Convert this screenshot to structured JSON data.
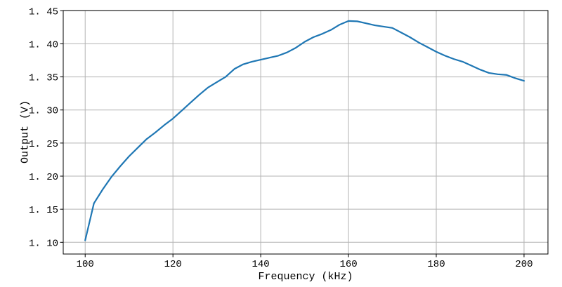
{
  "figure": {
    "background": "#ffffff"
  },
  "chart_data": {
    "type": "line",
    "title": "",
    "xlabel": "Frequency (kHz)",
    "ylabel": "Output (V)",
    "x": [
      100,
      102,
      104,
      106,
      108,
      110,
      112,
      114,
      116,
      118,
      120,
      122,
      124,
      126,
      128,
      130,
      132,
      134,
      136,
      138,
      140,
      142,
      144,
      146,
      148,
      150,
      152,
      154,
      156,
      158,
      160,
      162,
      164,
      166,
      168,
      170,
      172,
      174,
      176,
      178,
      180,
      182,
      184,
      186,
      188,
      190,
      192,
      194,
      196,
      198,
      200
    ],
    "y": [
      1.103,
      1.159,
      1.18,
      1.199,
      1.215,
      1.23,
      1.243,
      1.256,
      1.266,
      1.277,
      1.287,
      1.299,
      1.311,
      1.323,
      1.334,
      1.342,
      1.35,
      1.362,
      1.369,
      1.373,
      1.376,
      1.379,
      1.382,
      1.387,
      1.394,
      1.403,
      1.41,
      1.415,
      1.421,
      1.429,
      1.4345,
      1.434,
      1.431,
      1.428,
      1.426,
      1.424,
      1.417,
      1.41,
      1.402,
      1.395,
      1.388,
      1.382,
      1.377,
      1.373,
      1.367,
      1.361,
      1.356,
      1.354,
      1.353,
      1.348,
      1.344
    ],
    "xlim": [
      95,
      205.45
    ],
    "ylim": [
      1.0823,
      1.4503
    ],
    "xticks": [
      100,
      120,
      140,
      160,
      180,
      200
    ],
    "xtick_labels": [
      "100",
      "120",
      "140",
      "160",
      "180",
      "200"
    ],
    "yticks": [
      1.1,
      1.15,
      1.2,
      1.25,
      1.3,
      1.35,
      1.4,
      1.45
    ],
    "ytick_labels": [
      "1. 10",
      "1. 15",
      "1. 20",
      "1. 25",
      "1. 30",
      "1. 35",
      "1. 40",
      "1. 45"
    ],
    "grid": true,
    "legend_position": "none",
    "colors": {
      "line": "#1f77b4",
      "grid": "#b3b3b3",
      "spine": "#000000",
      "text": "#000000"
    }
  }
}
